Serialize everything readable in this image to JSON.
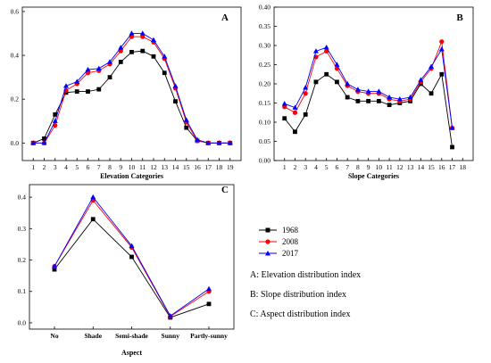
{
  "chart_data": [
    {
      "panel": "A",
      "type": "line",
      "xlabel": "Elevation Categories",
      "x": [
        1,
        2,
        3,
        4,
        5,
        6,
        7,
        8,
        9,
        10,
        11,
        12,
        13,
        14,
        15,
        16,
        17,
        18,
        19
      ],
      "xlim": [
        0,
        20
      ],
      "ylim": [
        -0.08,
        0.62
      ],
      "yticks": [
        0.0,
        0.2,
        0.4,
        0.6
      ],
      "ytick_labels": [
        "0.0",
        "0.2",
        "0.4",
        "0.6"
      ],
      "series": [
        {
          "name": "1968",
          "values": [
            0.0,
            0.02,
            0.13,
            0.23,
            0.235,
            0.235,
            0.245,
            0.3,
            0.37,
            0.415,
            0.42,
            0.395,
            0.32,
            0.19,
            0.07,
            0.01,
            0.0,
            0.0,
            0.0
          ]
        },
        {
          "name": "2008",
          "values": [
            0.0,
            0.0,
            0.08,
            0.24,
            0.27,
            0.32,
            0.33,
            0.36,
            0.42,
            0.485,
            0.485,
            0.46,
            0.385,
            0.25,
            0.095,
            0.01,
            0.0,
            0.0,
            0.0
          ]
        },
        {
          "name": "2017",
          "values": [
            0.0,
            0.0,
            0.1,
            0.26,
            0.28,
            0.335,
            0.34,
            0.37,
            0.435,
            0.5,
            0.5,
            0.47,
            0.395,
            0.26,
            0.105,
            0.015,
            0.0,
            0.0,
            0.0
          ]
        }
      ]
    },
    {
      "panel": "B",
      "type": "line",
      "xlabel": "Slope Categories",
      "x": [
        1,
        2,
        3,
        4,
        5,
        6,
        7,
        8,
        9,
        10,
        11,
        12,
        13,
        14,
        15,
        16,
        17
      ],
      "xticks": [
        1,
        2,
        3,
        4,
        5,
        6,
        7,
        8,
        9,
        10,
        11,
        12,
        13,
        14,
        15,
        16,
        17,
        18
      ],
      "xlim": [
        0,
        19
      ],
      "ylim": [
        0,
        0.4
      ],
      "yticks": [
        0.0,
        0.05,
        0.1,
        0.15,
        0.2,
        0.25,
        0.3,
        0.35,
        0.4
      ],
      "ytick_labels": [
        "0.00",
        "0.05",
        "0.10",
        "0.15",
        "0.20",
        "0.25",
        "0.30",
        "0.35",
        "0.40"
      ],
      "series": [
        {
          "name": "1968",
          "values": [
            0.11,
            0.075,
            0.12,
            0.205,
            0.225,
            0.205,
            0.165,
            0.155,
            0.155,
            0.155,
            0.145,
            0.15,
            0.155,
            0.2,
            0.175,
            0.225,
            0.035
          ]
        },
        {
          "name": "2008",
          "values": [
            0.14,
            0.125,
            0.175,
            0.27,
            0.285,
            0.24,
            0.195,
            0.18,
            0.175,
            0.175,
            0.16,
            0.155,
            0.16,
            0.205,
            0.24,
            0.31,
            0.085
          ]
        },
        {
          "name": "2017",
          "values": [
            0.148,
            0.138,
            0.19,
            0.285,
            0.295,
            0.25,
            0.2,
            0.185,
            0.18,
            0.18,
            0.165,
            0.16,
            0.165,
            0.21,
            0.245,
            0.29,
            0.085
          ]
        }
      ]
    },
    {
      "panel": "C",
      "type": "line",
      "xlabel": "Aspect",
      "categories": [
        "No",
        "Shade",
        "Semi-shade",
        "Sunny",
        "Partly-sunny"
      ],
      "ylim": [
        -0.02,
        0.44
      ],
      "yticks": [
        0.0,
        0.1,
        0.2,
        0.3,
        0.4
      ],
      "ytick_labels": [
        "0.0",
        "0.1",
        "0.2",
        "0.3",
        "0.4"
      ],
      "series": [
        {
          "name": "1968",
          "values": [
            0.17,
            0.33,
            0.21,
            0.017,
            0.06
          ]
        },
        {
          "name": "2008",
          "values": [
            0.18,
            0.39,
            0.24,
            0.02,
            0.1
          ]
        },
        {
          "name": "2017",
          "values": [
            0.18,
            0.4,
            0.245,
            0.022,
            0.108
          ]
        }
      ]
    }
  ],
  "legend": {
    "entries": [
      {
        "name": "1968",
        "color": "#000000",
        "marker": "square"
      },
      {
        "name": "2008",
        "color": "#ff0000",
        "marker": "circle"
      },
      {
        "name": "2017",
        "color": "#0000ff",
        "marker": "triangle"
      }
    ]
  },
  "notes": [
    "A: Elevation distribution index",
    "B: Slope distribution index",
    "C: Aspect distribution index"
  ],
  "colors": {
    "1968": "#000000",
    "2008": "#ff0000",
    "2017": "#0000ff"
  }
}
